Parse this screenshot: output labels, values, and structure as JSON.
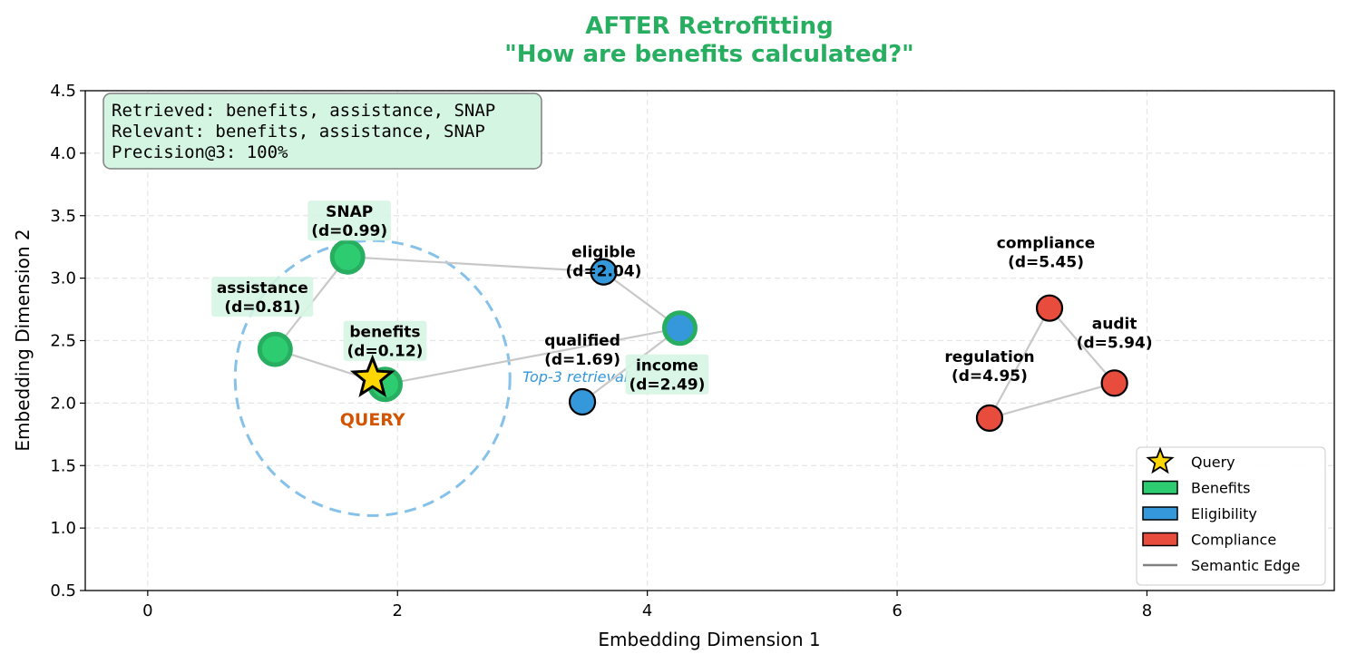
{
  "chart_data": {
    "type": "scatter",
    "title_line1": "AFTER Retrofitting",
    "title_line2": "\"How are benefits calculated?\"",
    "xlabel": "Embedding Dimension 1",
    "ylabel": "Embedding Dimension 2",
    "xlim": [
      -0.5,
      9.5
    ],
    "ylim": [
      0.5,
      4.5
    ],
    "xticks": [
      0,
      2,
      4,
      6,
      8
    ],
    "yticks": [
      0.5,
      1.0,
      1.5,
      2.0,
      2.5,
      3.0,
      3.5,
      4.0,
      4.5
    ],
    "grid": true,
    "query": {
      "x": 1.8,
      "y": 2.2,
      "label": "QUERY"
    },
    "radius": {
      "cx": 1.8,
      "cy": 2.2,
      "r": 1.1,
      "label": "Top-3 retrieval"
    },
    "nodes": [
      {
        "id": "benefits",
        "name": "benefits",
        "x": 1.9,
        "y": 2.15,
        "category": "Benefits",
        "distance": "(d=0.12)",
        "retrieved": true
      },
      {
        "id": "assistance",
        "name": "assistance",
        "x": 1.02,
        "y": 2.43,
        "category": "Benefits",
        "distance": "(d=0.81)",
        "retrieved": true
      },
      {
        "id": "snap",
        "name": "SNAP",
        "x": 1.6,
        "y": 3.17,
        "category": "Benefits",
        "distance": "(d=0.99)",
        "retrieved": true
      },
      {
        "id": "eligible",
        "name": "eligible",
        "x": 3.65,
        "y": 3.05,
        "category": "Eligibility",
        "distance": "(d=2.04)",
        "retrieved": false
      },
      {
        "id": "qualified",
        "name": "qualified",
        "x": 3.48,
        "y": 2.01,
        "category": "Eligibility",
        "distance": "(d=1.69)",
        "retrieved": false
      },
      {
        "id": "income",
        "name": "income",
        "x": 4.26,
        "y": 2.6,
        "category": "Eligibility",
        "distance": "(d=2.49)",
        "retrieved": false
      },
      {
        "id": "regulation",
        "name": "regulation",
        "x": 6.74,
        "y": 1.88,
        "category": "Compliance",
        "distance": "(d=4.95)",
        "retrieved": false
      },
      {
        "id": "compliance",
        "name": "compliance",
        "x": 7.22,
        "y": 2.76,
        "category": "Compliance",
        "distance": "(d=5.45)",
        "retrieved": false
      },
      {
        "id": "audit",
        "name": "audit",
        "x": 7.74,
        "y": 2.16,
        "category": "Compliance",
        "distance": "(d=5.94)",
        "retrieved": false
      }
    ],
    "edges": [
      [
        "snap",
        "eligible"
      ],
      [
        "snap",
        "assistance"
      ],
      [
        "assistance",
        "benefits"
      ],
      [
        "benefits",
        "income"
      ],
      [
        "eligible",
        "income"
      ],
      [
        "qualified",
        "income"
      ],
      [
        "regulation",
        "compliance"
      ],
      [
        "regulation",
        "audit"
      ],
      [
        "compliance",
        "audit"
      ]
    ],
    "legend": {
      "position": "lower-right",
      "items": [
        {
          "label": "Query",
          "kind": "star"
        },
        {
          "label": "Benefits",
          "kind": "patch",
          "color": "#2ecc71"
        },
        {
          "label": "Eligibility",
          "kind": "patch",
          "color": "#3498db"
        },
        {
          "label": "Compliance",
          "kind": "patch",
          "color": "#e74c3c"
        },
        {
          "label": "Semantic Edge",
          "kind": "line",
          "color": "#808080"
        }
      ]
    },
    "info_box": {
      "retrieved": "Retrieved: benefits, assistance, SNAP",
      "relevant": "Relevant: benefits, assistance, SNAP",
      "precision": "Precision@3: 100%"
    }
  },
  "colors": {
    "title": "#27ae60",
    "Benefits": "#2ecc71",
    "Eligibility": "#3498db",
    "Compliance": "#e74c3c",
    "query_fill": "#ffd700",
    "query_label": "#d35400",
    "radius": "#85c1e9",
    "radius_label": "#3498db",
    "retrieved_ring": "#27ae60",
    "label_bg": "#d5f5e3",
    "edge": "#c8c8c8",
    "grid": "#e5e5e5"
  }
}
